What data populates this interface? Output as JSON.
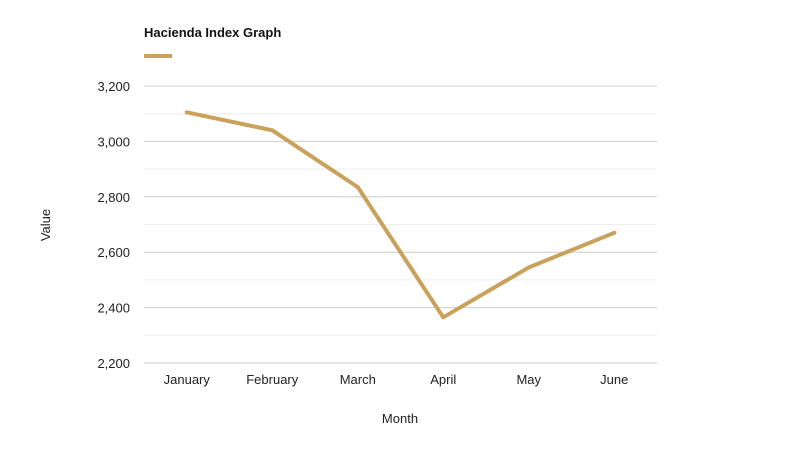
{
  "chart_data": {
    "type": "line",
    "title": "Hacienda Index Graph",
    "xlabel": "Month",
    "ylabel": "Value",
    "categories": [
      "January",
      "February",
      "March",
      "April",
      "May",
      "June"
    ],
    "series": [
      {
        "name": "Hacienda Index Graph",
        "values": [
          3105,
          3040,
          2835,
          2365,
          2545,
          2670
        ]
      }
    ],
    "ylim": [
      2200,
      3200
    ],
    "yticks": [
      2200,
      2400,
      2600,
      2800,
      3000,
      3200
    ],
    "ytick_labels": [
      "2,200",
      "2,400",
      "2,600",
      "2,800",
      "3,000",
      "3,200"
    ],
    "grid": true,
    "legend": "top-left",
    "colors": {
      "series": "#c9a15a",
      "grid": "#cccccc",
      "grid_minor": "#eeeeee"
    }
  }
}
